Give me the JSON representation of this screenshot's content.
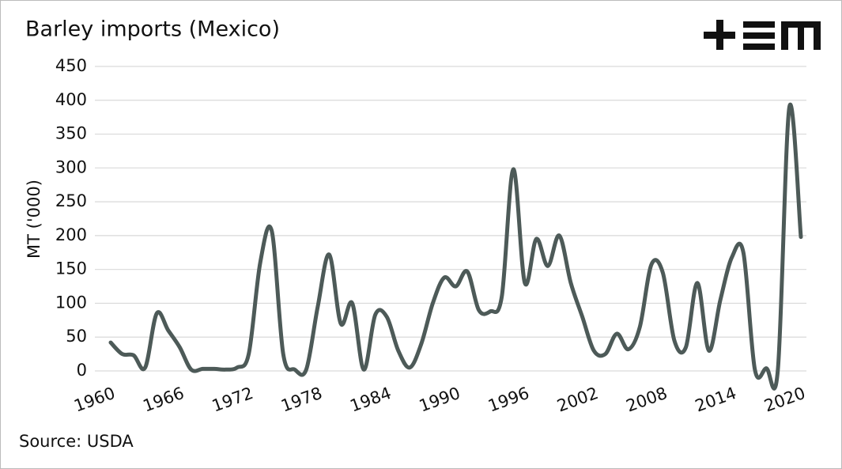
{
  "chart_data": {
    "type": "line",
    "title": "Barley imports (Mexico)",
    "source": "Source: USDA",
    "y_label": "MT ('000)",
    "x": [
      1960,
      1961,
      1962,
      1963,
      1964,
      1965,
      1966,
      1967,
      1968,
      1969,
      1970,
      1971,
      1972,
      1973,
      1974,
      1975,
      1976,
      1977,
      1978,
      1979,
      1980,
      1981,
      1982,
      1983,
      1984,
      1985,
      1986,
      1987,
      1988,
      1989,
      1990,
      1991,
      1992,
      1993,
      1994,
      1995,
      1996,
      1997,
      1998,
      1999,
      2000,
      2001,
      2002,
      2003,
      2004,
      2005,
      2006,
      2007,
      2008,
      2009,
      2010,
      2011,
      2012,
      2013,
      2014,
      2015,
      2016,
      2017,
      2018,
      2019,
      2020
    ],
    "series": [
      {
        "name": "Barley imports",
        "color": "#4d5a58",
        "values": [
          42,
          25,
          23,
          5,
          85,
          60,
          35,
          2,
          3,
          3,
          2,
          5,
          25,
          160,
          207,
          25,
          2,
          2,
          95,
          172,
          70,
          100,
          2,
          83,
          80,
          30,
          5,
          40,
          100,
          138,
          125,
          147,
          90,
          88,
          110,
          298,
          130,
          195,
          155,
          200,
          130,
          80,
          30,
          25,
          55,
          32,
          65,
          157,
          145,
          45,
          35,
          130,
          30,
          105,
          168,
          175,
          2,
          4,
          2,
          390,
          198
        ]
      }
    ],
    "xlim": [
      1960,
      2020
    ],
    "xticks": [
      1960,
      1966,
      1972,
      1978,
      1984,
      1990,
      1996,
      2002,
      2008,
      2014,
      2020
    ],
    "ylim": [
      0,
      450
    ],
    "yticks": [
      0,
      50,
      100,
      150,
      200,
      250,
      300,
      350,
      400,
      450
    ],
    "grid": true
  }
}
